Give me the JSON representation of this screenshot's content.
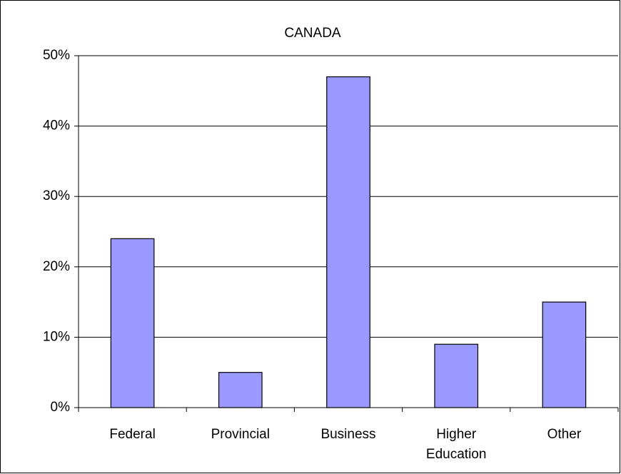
{
  "chart_data": {
    "type": "bar",
    "title": "CANADA",
    "categories": [
      "Federal",
      "Provincial",
      "Business",
      "Higher Education",
      "Other"
    ],
    "values": [
      24,
      5,
      47,
      9,
      15
    ],
    "color": "#9999ff",
    "ylim": [
      0,
      50
    ],
    "yticks": [
      {
        "value": 0,
        "label": "0%"
      },
      {
        "value": 10,
        "label": "10%"
      },
      {
        "value": 20,
        "label": "20%"
      },
      {
        "value": 30,
        "label": "30%"
      },
      {
        "value": 40,
        "label": "40%"
      },
      {
        "value": 50,
        "label": "50%"
      }
    ],
    "grid": true
  }
}
